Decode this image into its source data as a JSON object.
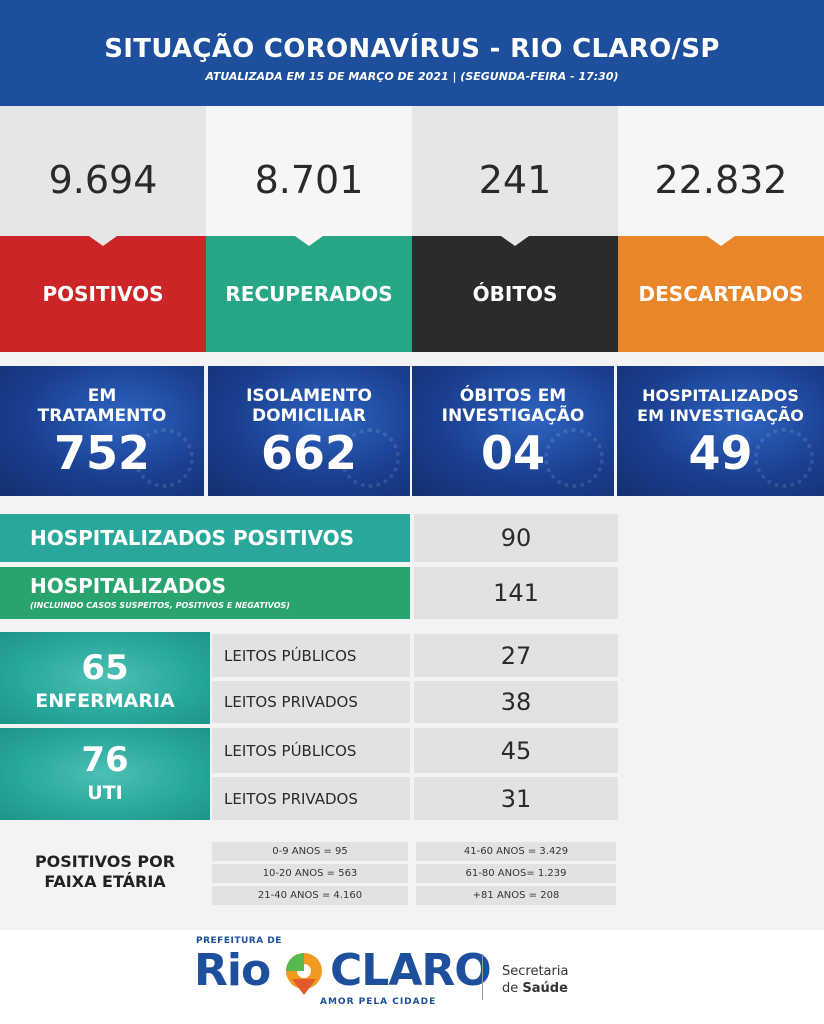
{
  "header": {
    "title": "SITUAÇÃO CORONAVÍRUS - RIO CLARO/SP",
    "subtitle": "ATUALIZADA EM 15 DE MARÇO DE 2021 | (SEGUNDA-FEIRA - 17:30)",
    "color": "#1d4f9c"
  },
  "stats": [
    {
      "value": "9.694",
      "label": "POSITIVOS",
      "color": "#cc2527"
    },
    {
      "value": "8.701",
      "label": "RECUPERADOS",
      "color": "#27a687"
    },
    {
      "value": "241",
      "label": "ÓBITOS",
      "color": "#2b2b2b"
    },
    {
      "value": "22.832",
      "label": "DESCARTADOS",
      "color": "#e9862a"
    }
  ],
  "details": [
    {
      "label1": "EM",
      "label2": "TRATAMENTO",
      "value": "752"
    },
    {
      "label1": "ISOLAMENTO",
      "label2": "DOMICILIAR",
      "value": "662"
    },
    {
      "label1": "ÓBITOS EM",
      "label2": "INVESTIGAÇÃO",
      "value": "04"
    },
    {
      "label1": "HOSPITALIZADOS",
      "label2": "EM INVESTIGAÇÃO",
      "value": "49"
    }
  ],
  "hospitalized_positive": {
    "label": "HOSPITALIZADOS POSITIVOS",
    "value": "90",
    "color": "#2aa79b"
  },
  "hospitalized": {
    "label": "HOSPITALIZADOS",
    "note": "(INCLUINDO CASOS SUSPEITOS, POSITIVOS E NEGATIVOS)",
    "value": "141",
    "color": "#2aa46f"
  },
  "beds": [
    {
      "total": "65",
      "name": "ENFERMARIA",
      "public_label": "LEITOS PÚBLICOS",
      "public_value": "27",
      "private_label": "LEITOS PRIVADOS",
      "private_value": "38"
    },
    {
      "total": "76",
      "name": "UTI",
      "public_label": "LEITOS PÚBLICOS",
      "public_value": "45",
      "private_label": "LEITOS PRIVADOS",
      "private_value": "31"
    }
  ],
  "age": {
    "title1": "POSITIVOS POR",
    "title2": "FAIXA ETÁRIA",
    "left": [
      "0-9 ANOS = 95",
      "10-20 ANOS = 563",
      "21-40 ANOS = 4.160"
    ],
    "right": [
      "41-60 ANOS = 3.429",
      "61-80 ANOS= 1.239",
      "+81 ANOS = 208"
    ]
  },
  "footer": {
    "prefeitura": "PREFEITURA DE",
    "rio": "Rio",
    "claro": "CLARO",
    "tagline": "AMOR PELA CIDADE",
    "secretaria": "Secretaria",
    "de": "de",
    "saude": "Saúde"
  }
}
